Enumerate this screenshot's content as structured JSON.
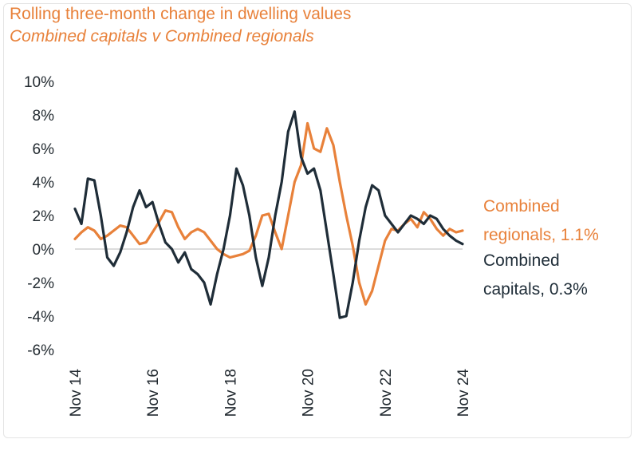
{
  "title": "Rolling three-month change in dwelling values",
  "subtitle": "Combined capitals v Combined regionals",
  "chart_data": {
    "type": "line",
    "title": "Rolling three-month change in dwelling values",
    "subtitle": "Combined capitals v Combined regionals",
    "xlabel": "",
    "ylabel": "",
    "ylim": [
      -6,
      10
    ],
    "y_ticks": [
      "10%",
      "8%",
      "6%",
      "4%",
      "2%",
      "0%",
      "-2%",
      "-4%",
      "-6%"
    ],
    "x_ticks": [
      "Nov 14",
      "Nov 16",
      "Nov 18",
      "Nov 20",
      "Nov 22",
      "Nov 24"
    ],
    "x_range": [
      0,
      120
    ],
    "grid": false,
    "zero_line": true,
    "series": [
      {
        "name": "Combined regionals",
        "end_label": [
          "Combined",
          "regionals, 1.1%"
        ],
        "color": "#e8813a",
        "x": [
          0,
          2,
          4,
          6,
          8,
          10,
          12,
          14,
          16,
          18,
          20,
          22,
          24,
          26,
          28,
          30,
          32,
          34,
          36,
          38,
          40,
          42,
          44,
          46,
          48,
          50,
          52,
          54,
          56,
          58,
          60,
          62,
          64,
          66,
          68,
          70,
          72,
          74,
          76,
          78,
          80,
          82,
          84,
          86,
          88,
          90,
          92,
          94,
          96,
          98,
          100,
          102,
          104,
          106,
          108,
          110,
          112,
          114,
          116,
          118,
          120
        ],
        "values": [
          0.6,
          1.0,
          1.3,
          1.1,
          0.6,
          0.8,
          1.1,
          1.4,
          1.3,
          0.8,
          0.3,
          0.4,
          1.0,
          1.6,
          2.3,
          2.2,
          1.3,
          0.6,
          1.0,
          1.2,
          1.0,
          0.5,
          0.0,
          -0.3,
          -0.5,
          -0.4,
          -0.3,
          -0.1,
          0.8,
          2.0,
          2.1,
          1.0,
          0.0,
          2.0,
          4.0,
          5.0,
          7.5,
          6.0,
          5.8,
          7.2,
          6.2,
          4.0,
          2.0,
          0.2,
          -2.0,
          -3.3,
          -2.5,
          -1.0,
          0.5,
          1.2,
          1.1,
          1.5,
          1.8,
          1.3,
          2.2,
          1.8,
          1.2,
          0.8,
          1.2,
          1.0,
          1.1
        ]
      },
      {
        "name": "Combined capitals",
        "end_label": [
          "Combined",
          "capitals, 0.3%"
        ],
        "color": "#1f2d38",
        "x": [
          0,
          2,
          4,
          6,
          8,
          10,
          12,
          14,
          16,
          18,
          20,
          22,
          24,
          26,
          28,
          30,
          32,
          34,
          36,
          38,
          40,
          42,
          44,
          46,
          48,
          50,
          52,
          54,
          56,
          58,
          60,
          62,
          64,
          66,
          68,
          70,
          72,
          74,
          76,
          78,
          80,
          82,
          84,
          86,
          88,
          90,
          92,
          94,
          96,
          98,
          100,
          102,
          104,
          106,
          108,
          110,
          112,
          114,
          116,
          118,
          120
        ],
        "values": [
          2.4,
          1.5,
          4.2,
          4.1,
          2.0,
          -0.5,
          -1.0,
          -0.2,
          1.0,
          2.5,
          3.5,
          2.5,
          2.8,
          1.5,
          0.4,
          0.0,
          -0.8,
          -0.2,
          -1.2,
          -1.5,
          -2.0,
          -3.3,
          -1.5,
          0.0,
          2.0,
          4.8,
          3.8,
          2.0,
          -0.5,
          -2.2,
          -0.5,
          2.0,
          4.0,
          7.0,
          8.2,
          5.5,
          4.5,
          4.8,
          3.5,
          1.0,
          -1.5,
          -4.1,
          -4.0,
          -2.0,
          0.5,
          2.5,
          3.8,
          3.5,
          2.0,
          1.5,
          1.0,
          1.5,
          2.0,
          1.8,
          1.5,
          2.0,
          1.8,
          1.2,
          0.8,
          0.5,
          0.3
        ]
      }
    ]
  }
}
